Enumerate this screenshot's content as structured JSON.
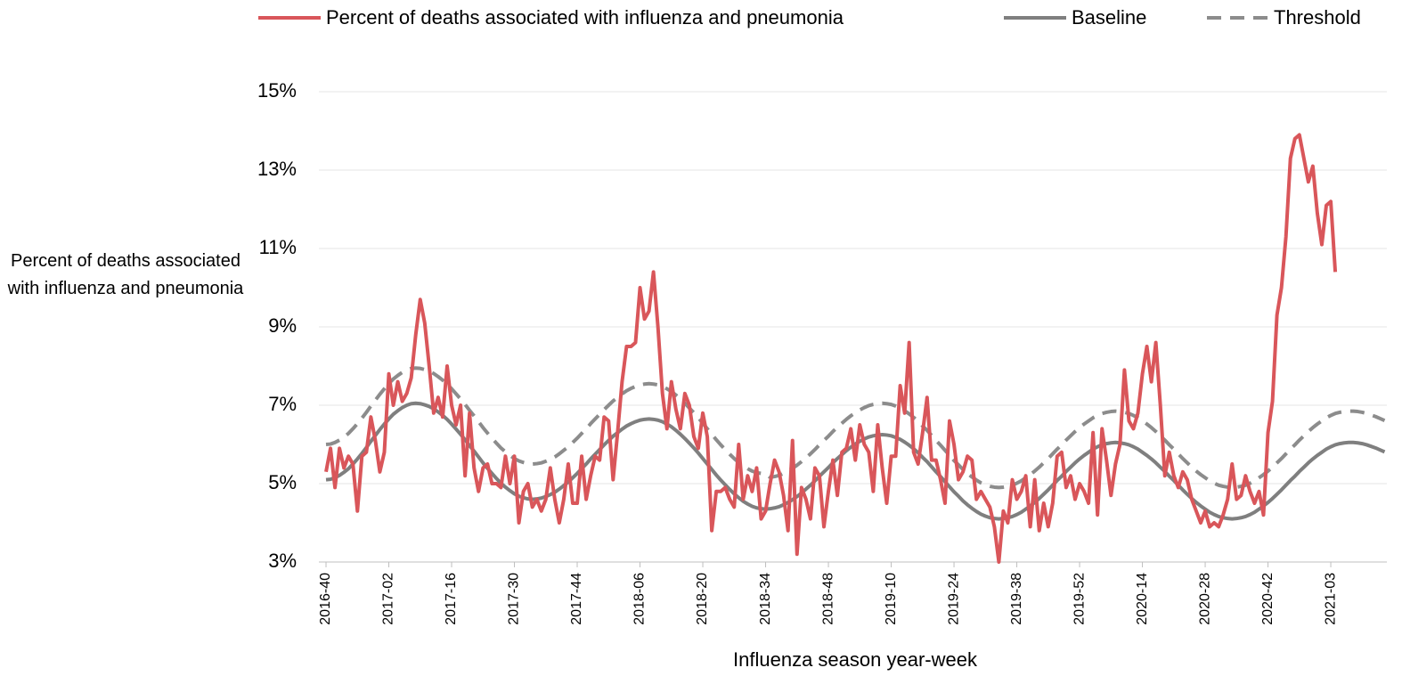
{
  "chart_data": {
    "type": "line",
    "x_label": "Influenza season year-week",
    "y_label": "Percent of deaths associated with influenza and pneumonia",
    "legend": "top",
    "grid": true,
    "ylim": [
      3,
      15
    ],
    "yticks": [
      {
        "value": 3,
        "label": "3%"
      },
      {
        "value": 5,
        "label": "5%"
      },
      {
        "value": 7,
        "label": "7%"
      },
      {
        "value": 9,
        "label": "9%"
      },
      {
        "value": 11,
        "label": "11%"
      },
      {
        "value": 13,
        "label": "13%"
      },
      {
        "value": 15,
        "label": "15%"
      }
    ],
    "categories": [
      "2016-40",
      null,
      null,
      null,
      null,
      null,
      null,
      null,
      null,
      null,
      null,
      null,
      null,
      null,
      "2017-02",
      null,
      null,
      null,
      null,
      null,
      null,
      null,
      null,
      null,
      null,
      null,
      null,
      null,
      "2017-16",
      null,
      null,
      null,
      null,
      null,
      null,
      null,
      null,
      null,
      null,
      null,
      null,
      null,
      "2017-30",
      null,
      null,
      null,
      null,
      null,
      null,
      null,
      null,
      null,
      null,
      null,
      null,
      null,
      "2017-44",
      null,
      null,
      null,
      null,
      null,
      null,
      null,
      null,
      null,
      null,
      null,
      null,
      null,
      "2018-06",
      null,
      null,
      null,
      null,
      null,
      null,
      null,
      null,
      null,
      null,
      null,
      null,
      null,
      "2018-20",
      null,
      null,
      null,
      null,
      null,
      null,
      null,
      null,
      null,
      null,
      null,
      null,
      null,
      "2018-34",
      null,
      null,
      null,
      null,
      null,
      null,
      null,
      null,
      null,
      null,
      null,
      null,
      null,
      "2018-48",
      null,
      null,
      null,
      null,
      null,
      null,
      null,
      null,
      null,
      null,
      null,
      null,
      null,
      "2019-10",
      null,
      null,
      null,
      null,
      null,
      null,
      null,
      null,
      null,
      null,
      null,
      null,
      null,
      "2019-24",
      null,
      null,
      null,
      null,
      null,
      null,
      null,
      null,
      null,
      null,
      null,
      null,
      null,
      "2019-38",
      null,
      null,
      null,
      null,
      null,
      null,
      null,
      null,
      null,
      null,
      null,
      null,
      null,
      "2019-52",
      null,
      null,
      null,
      null,
      null,
      null,
      null,
      null,
      null,
      null,
      null,
      null,
      null,
      "2020-14",
      null,
      null,
      null,
      null,
      null,
      null,
      null,
      null,
      null,
      null,
      null,
      null,
      null,
      "2020-28",
      null,
      null,
      null,
      null,
      null,
      null,
      null,
      null,
      null,
      null,
      null,
      null,
      null,
      "2020-42",
      null,
      null,
      null,
      null,
      null,
      null,
      null,
      null,
      null,
      null,
      null,
      null,
      null,
      "2021-03",
      null,
      null,
      null,
      null,
      null,
      null,
      null,
      null,
      null,
      null,
      null,
      null
    ],
    "series": [
      {
        "name": "Percent of deaths associated with influenza and pneumonia",
        "color": "#d9565a",
        "dashed": false,
        "values": [
          5.3,
          5.9,
          4.9,
          5.9,
          5.4,
          5.7,
          5.5,
          4.3,
          5.7,
          5.8,
          6.7,
          6.1,
          5.3,
          5.8,
          7.8,
          7.0,
          7.6,
          7.1,
          7.3,
          7.7,
          8.8,
          9.7,
          9.1,
          8.0,
          6.8,
          7.2,
          6.7,
          8.0,
          7.0,
          6.5,
          7.0,
          5.2,
          6.8,
          5.4,
          4.8,
          5.4,
          5.5,
          5.0,
          5.0,
          4.9,
          5.7,
          5.0,
          5.7,
          4.0,
          4.8,
          5.0,
          4.4,
          4.6,
          4.3,
          4.6,
          5.4,
          4.6,
          4.0,
          4.6,
          5.5,
          4.5,
          4.5,
          5.7,
          4.6,
          5.2,
          5.7,
          5.6,
          6.7,
          6.6,
          5.1,
          6.3,
          7.6,
          8.5,
          8.5,
          8.6,
          10.0,
          9.2,
          9.4,
          10.4,
          9.0,
          7.3,
          6.4,
          7.6,
          6.9,
          6.4,
          7.3,
          7.0,
          6.2,
          5.9,
          6.8,
          6.2,
          3.8,
          4.8,
          4.8,
          4.9,
          4.6,
          4.4,
          6.0,
          4.6,
          5.2,
          4.8,
          5.4,
          4.1,
          4.3,
          5.0,
          5.6,
          5.3,
          4.7,
          3.8,
          6.1,
          3.2,
          4.9,
          4.6,
          4.1,
          5.4,
          5.2,
          3.9,
          4.8,
          5.6,
          4.7,
          5.8,
          5.9,
          6.4,
          5.6,
          6.5,
          6.0,
          5.8,
          4.8,
          6.5,
          5.4,
          4.5,
          5.7,
          5.7,
          7.5,
          6.8,
          8.6,
          5.8,
          5.5,
          6.3,
          7.2,
          5.6,
          5.6,
          5.1,
          4.5,
          6.6,
          6.0,
          5.1,
          5.3,
          5.7,
          5.6,
          4.6,
          4.8,
          4.6,
          4.4,
          3.9,
          3.0,
          4.3,
          4.0,
          5.1,
          4.6,
          4.8,
          5.2,
          3.9,
          5.1,
          3.8,
          4.5,
          3.9,
          4.5,
          5.7,
          5.8,
          4.9,
          5.2,
          4.6,
          5.0,
          4.8,
          4.5,
          6.3,
          4.2,
          6.4,
          5.6,
          4.7,
          5.5,
          6.0,
          7.9,
          6.6,
          6.4,
          6.8,
          7.8,
          8.5,
          7.6,
          8.6,
          7.0,
          5.2,
          5.8,
          5.2,
          4.9,
          5.3,
          5.1,
          4.6,
          4.3,
          4.0,
          4.3,
          3.9,
          4.0,
          3.9,
          4.2,
          4.6,
          5.5,
          4.6,
          4.7,
          5.2,
          4.8,
          4.5,
          4.8,
          4.2,
          6.3,
          7.1,
          9.3,
          10.0,
          11.3,
          13.3,
          13.8,
          13.9,
          13.3,
          12.7,
          13.1,
          11.9,
          11.1,
          12.1,
          12.2,
          10.4,
          null,
          null,
          null,
          null,
          null,
          null,
          null,
          null,
          null,
          null,
          null
        ]
      },
      {
        "name": "Baseline",
        "color": "#7f7f7f",
        "dashed": false,
        "values": [
          5.1,
          5.11,
          5.15,
          5.21,
          5.29,
          5.38,
          5.5,
          5.63,
          5.77,
          5.92,
          6.08,
          6.23,
          6.38,
          6.52,
          6.65,
          6.77,
          6.86,
          6.94,
          7.0,
          7.04,
          7.05,
          7.04,
          7.01,
          6.97,
          6.91,
          6.83,
          6.74,
          6.64,
          6.52,
          6.39,
          6.26,
          6.12,
          5.97,
          5.83,
          5.68,
          5.53,
          5.39,
          5.26,
          5.13,
          5.01,
          4.91,
          4.82,
          4.74,
          4.68,
          4.64,
          4.61,
          4.6,
          4.61,
          4.63,
          4.67,
          4.72,
          4.78,
          4.86,
          4.95,
          5.04,
          5.15,
          5.26,
          5.38,
          5.5,
          5.63,
          5.75,
          5.87,
          5.99,
          6.1,
          6.21,
          6.3,
          6.39,
          6.47,
          6.53,
          6.58,
          6.62,
          6.64,
          6.65,
          6.64,
          6.62,
          6.58,
          6.52,
          6.45,
          6.36,
          6.26,
          6.15,
          6.03,
          5.91,
          5.78,
          5.64,
          5.5,
          5.36,
          5.22,
          5.09,
          4.97,
          4.85,
          4.74,
          4.64,
          4.55,
          4.48,
          4.42,
          4.38,
          4.36,
          4.35,
          4.36,
          4.38,
          4.41,
          4.46,
          4.52,
          4.59,
          4.67,
          4.76,
          4.86,
          4.96,
          5.07,
          5.19,
          5.3,
          5.41,
          5.53,
          5.64,
          5.74,
          5.84,
          5.93,
          6.01,
          6.08,
          6.14,
          6.19,
          6.22,
          6.24,
          6.25,
          6.24,
          6.22,
          6.18,
          6.13,
          6.06,
          5.98,
          5.89,
          5.79,
          5.67,
          5.56,
          5.43,
          5.3,
          5.18,
          5.05,
          4.92,
          4.79,
          4.68,
          4.56,
          4.46,
          4.37,
          4.29,
          4.22,
          4.17,
          4.13,
          4.11,
          4.1,
          4.11,
          4.13,
          4.16,
          4.21,
          4.27,
          4.35,
          4.43,
          4.52,
          4.62,
          4.73,
          4.84,
          4.96,
          5.08,
          5.19,
          5.31,
          5.42,
          5.53,
          5.63,
          5.72,
          5.8,
          5.88,
          5.94,
          5.99,
          6.02,
          6.04,
          6.05,
          6.04,
          6.02,
          5.99,
          5.94,
          5.88,
          5.8,
          5.72,
          5.63,
          5.53,
          5.42,
          5.31,
          5.19,
          5.08,
          4.96,
          4.84,
          4.73,
          4.62,
          4.52,
          4.43,
          4.35,
          4.27,
          4.21,
          4.16,
          4.13,
          4.11,
          4.1,
          4.11,
          4.13,
          4.16,
          4.21,
          4.27,
          4.35,
          4.43,
          4.52,
          4.62,
          4.73,
          4.84,
          4.96,
          5.08,
          5.19,
          5.31,
          5.42,
          5.53,
          5.63,
          5.72,
          5.8,
          5.88,
          5.94,
          5.99,
          6.02,
          6.04,
          6.05,
          6.05,
          6.04,
          6.02,
          5.99,
          5.95,
          5.91,
          5.86,
          5.81
        ]
      },
      {
        "name": "Threshold",
        "color": "#8c8c8c",
        "dashed": true,
        "values": [
          6.0,
          6.01,
          6.05,
          6.11,
          6.19,
          6.28,
          6.4,
          6.53,
          6.67,
          6.82,
          6.98,
          7.13,
          7.28,
          7.42,
          7.55,
          7.67,
          7.76,
          7.84,
          7.9,
          7.94,
          7.95,
          7.94,
          7.91,
          7.87,
          7.81,
          7.73,
          7.64,
          7.54,
          7.42,
          7.29,
          7.16,
          7.02,
          6.87,
          6.73,
          6.58,
          6.43,
          6.29,
          6.16,
          6.03,
          5.91,
          5.81,
          5.72,
          5.64,
          5.58,
          5.54,
          5.51,
          5.5,
          5.51,
          5.53,
          5.57,
          5.62,
          5.68,
          5.76,
          5.85,
          5.94,
          6.05,
          6.16,
          6.28,
          6.4,
          6.53,
          6.65,
          6.77,
          6.89,
          7.0,
          7.11,
          7.2,
          7.29,
          7.37,
          7.43,
          7.48,
          7.52,
          7.54,
          7.55,
          7.54,
          7.52,
          7.48,
          7.42,
          7.35,
          7.26,
          7.16,
          7.05,
          6.93,
          6.81,
          6.68,
          6.54,
          6.4,
          6.26,
          6.12,
          5.99,
          5.87,
          5.75,
          5.64,
          5.54,
          5.45,
          5.38,
          5.32,
          5.28,
          5.26,
          5.25,
          5.16,
          5.18,
          5.21,
          5.26,
          5.32,
          5.39,
          5.47,
          5.56,
          5.66,
          5.76,
          5.87,
          5.99,
          6.1,
          6.21,
          6.33,
          6.44,
          6.54,
          6.64,
          6.73,
          6.81,
          6.88,
          6.94,
          6.99,
          7.02,
          7.04,
          7.05,
          7.04,
          7.02,
          6.98,
          6.93,
          6.86,
          6.78,
          6.69,
          6.59,
          6.47,
          6.36,
          6.23,
          6.1,
          5.98,
          5.85,
          5.72,
          5.59,
          5.48,
          5.36,
          5.26,
          5.17,
          5.09,
          5.02,
          4.97,
          4.93,
          4.91,
          4.9,
          4.91,
          4.93,
          4.96,
          5.01,
          5.07,
          5.15,
          5.23,
          5.32,
          5.42,
          5.53,
          5.64,
          5.76,
          5.88,
          5.99,
          6.11,
          6.22,
          6.33,
          6.43,
          6.52,
          6.6,
          6.68,
          6.74,
          6.79,
          6.82,
          6.84,
          6.85,
          6.84,
          6.82,
          6.79,
          6.74,
          6.68,
          6.6,
          6.52,
          6.43,
          6.33,
          6.22,
          6.11,
          5.99,
          5.88,
          5.76,
          5.64,
          5.53,
          5.42,
          5.32,
          5.23,
          5.15,
          5.07,
          5.01,
          4.96,
          4.93,
          4.91,
          4.9,
          4.91,
          4.93,
          4.96,
          5.01,
          5.07,
          5.15,
          5.23,
          5.32,
          5.42,
          5.53,
          5.64,
          5.76,
          5.88,
          5.99,
          6.11,
          6.22,
          6.33,
          6.43,
          6.52,
          6.6,
          6.68,
          6.74,
          6.79,
          6.82,
          6.84,
          6.85,
          6.85,
          6.84,
          6.82,
          6.79,
          6.75,
          6.71,
          6.66,
          6.61
        ]
      }
    ]
  }
}
